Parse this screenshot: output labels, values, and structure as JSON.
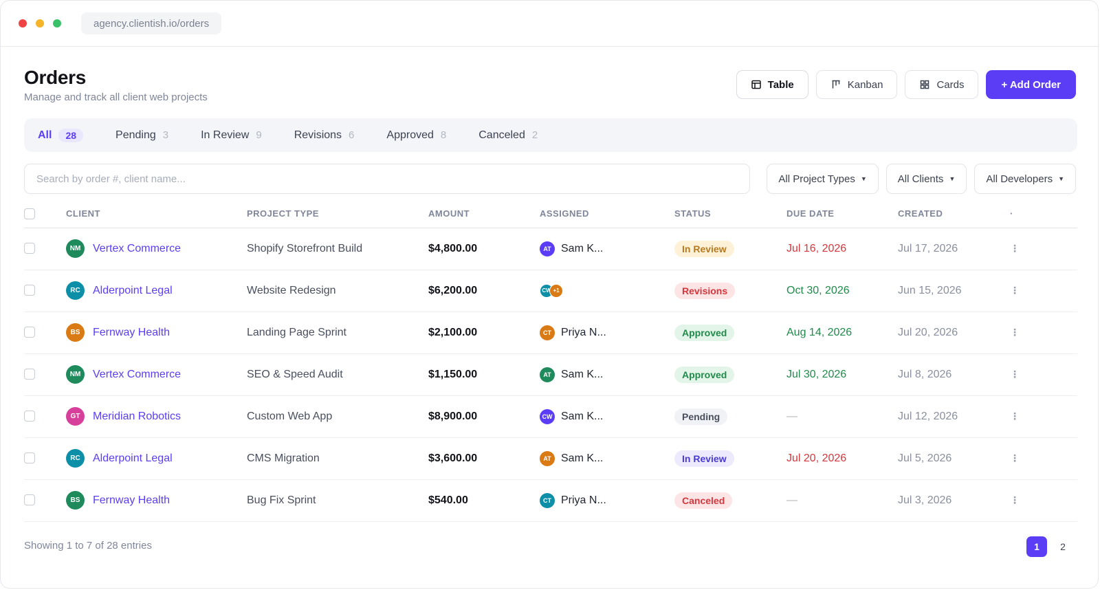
{
  "browser": {
    "url": "agency.clientish.io/orders"
  },
  "header": {
    "title": "Orders",
    "subtitle": "Manage and track all client web projects"
  },
  "views": {
    "table": "Table",
    "kanban": "Kanban",
    "cards": "Cards",
    "add": "+ Add Order"
  },
  "tabs": [
    {
      "label": "All",
      "count": "28"
    },
    {
      "label": "Pending",
      "count": "3"
    },
    {
      "label": "In Review",
      "count": "9"
    },
    {
      "label": "Revisions",
      "count": "6"
    },
    {
      "label": "Approved",
      "count": "8"
    },
    {
      "label": "Canceled",
      "count": "2"
    }
  ],
  "search": {
    "placeholder": "Search by order #, client name..."
  },
  "filters": {
    "types": "All Project Types",
    "clients": "All Clients",
    "developers": "All Developers"
  },
  "columns": {
    "client": "CLIENT",
    "project": "PROJECT TYPE",
    "amount": "AMOUNT",
    "assigned": "ASSIGNED",
    "status": "STATUS",
    "due": "DUE DATE",
    "created": "CREATED",
    "more": "·"
  },
  "rows": [
    {
      "initials": "NM",
      "client": "Vertex Commerce",
      "project": "Shopify Storefront Build",
      "amount": "$4,800.00",
      "assignee_initials": "AT",
      "assignee": "Sam K...",
      "status": "In Review",
      "due": "Jul 16, 2026",
      "created": "Jul 17, 2026",
      "more": "⋮"
    },
    {
      "initials": "RC",
      "client": "Alderpoint Legal",
      "project": "Website Redesign",
      "amount": "$6,200.00",
      "assignee_initials": "CW",
      "assignee_extra": "+1",
      "status": "Revisions",
      "due": "Oct 30, 2026",
      "created": "Jun 15, 2026",
      "more": "⋮"
    },
    {
      "initials": "BS",
      "client": "Fernway Health",
      "project": "Landing Page Sprint",
      "amount": "$2,100.00",
      "assignee_initials": "CT",
      "assignee": "Priya N...",
      "status": "Approved",
      "due": "Aug 14, 2026",
      "created": "Jul 20, 2026",
      "more": "⋮"
    },
    {
      "initials": "NM",
      "client": "Vertex Commerce",
      "project": "SEO & Speed Audit",
      "amount": "$1,150.00",
      "assignee_initials": "AT",
      "assignee": "Sam K...",
      "status": "Approved",
      "due": "Jul 30, 2026",
      "created": "Jul 8, 2026",
      "more": "⋮"
    },
    {
      "initials": "GT",
      "client": "Meridian Robotics",
      "project": "Custom Web App",
      "amount": "$8,900.00",
      "assignee_initials": "CW",
      "assignee": "Sam K...",
      "status": "Pending",
      "due": "—",
      "created": "Jul 12, 2026",
      "more": "⋮"
    },
    {
      "initials": "RC",
      "client": "Alderpoint Legal",
      "project": "CMS Migration",
      "amount": "$3,600.00",
      "assignee_initials": "AT",
      "assignee": "Sam K...",
      "status": "In Review",
      "due": "Jul 20, 2026",
      "created": "Jul 5, 2026",
      "more": "⋮"
    },
    {
      "initials": "BS",
      "client": "Fernway Health",
      "project": "Bug Fix Sprint",
      "amount": "$540.00",
      "assignee_initials": "CT",
      "assignee": "Priya N...",
      "status": "Canceled",
      "due": "—",
      "created": "Jul 3, 2026",
      "more": "⋮"
    }
  ],
  "footer": {
    "showing": "Showing 1 to 7 of 28 entries"
  },
  "pagination": {
    "pages": [
      "1",
      "2"
    ]
  },
  "colors": {
    "accent": "#5b3df5",
    "green_avatar": "#1f8a5b",
    "teal_avatar": "#0e8fa8",
    "orange_avatar": "#d97a14",
    "pink_avatar": "#d63f9a",
    "purple_avatar": "#5b3df5"
  }
}
